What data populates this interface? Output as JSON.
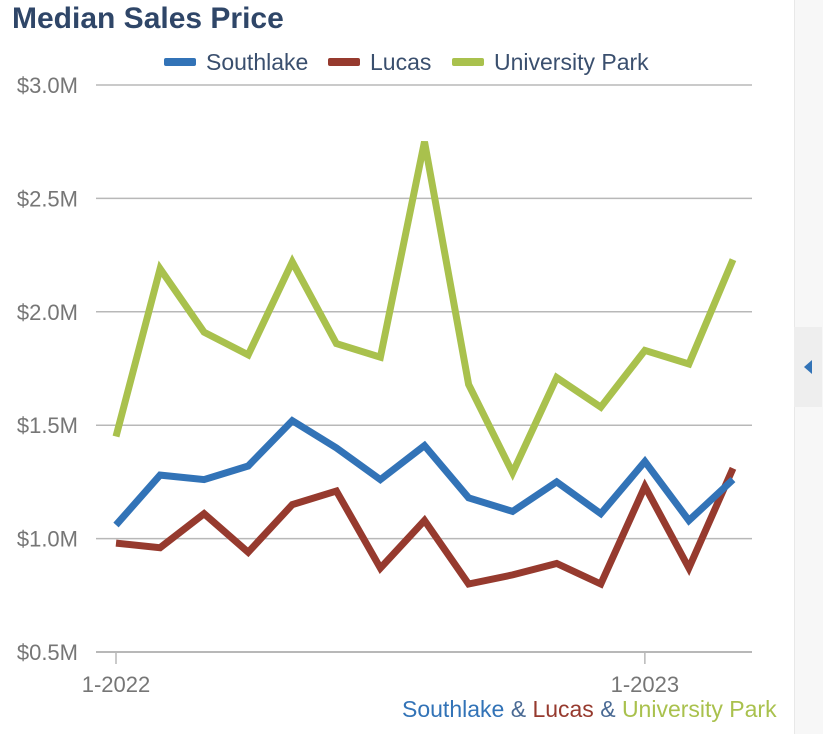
{
  "chart_data": {
    "type": "line",
    "title": "Median Sales Price",
    "xlabel": "",
    "ylabel": "",
    "ylim": [
      0.5,
      3.0
    ],
    "yticks": [
      {
        "value": 0.5,
        "label": "$0.5M"
      },
      {
        "value": 1.0,
        "label": "$1.0M"
      },
      {
        "value": 1.5,
        "label": "$1.5M"
      },
      {
        "value": 2.0,
        "label": "$2.0M"
      },
      {
        "value": 2.5,
        "label": "$2.5M"
      },
      {
        "value": 3.0,
        "label": "$3.0M"
      }
    ],
    "x": [
      "1-2022",
      "2-2022",
      "3-2022",
      "4-2022",
      "5-2022",
      "6-2022",
      "7-2022",
      "8-2022",
      "9-2022",
      "10-2022",
      "11-2022",
      "12-2022",
      "1-2023",
      "2-2023",
      "3-2023"
    ],
    "xtick_labels": [
      {
        "index": 0,
        "label": "1-2022"
      },
      {
        "index": 12,
        "label": "1-2023"
      }
    ],
    "grid": true,
    "legend_position": "top",
    "series": [
      {
        "name": "Southlake",
        "color": "#3273b7",
        "values": [
          1.06,
          1.28,
          1.26,
          1.32,
          1.52,
          1.4,
          1.26,
          1.41,
          1.18,
          1.12,
          1.25,
          1.11,
          1.34,
          1.08,
          1.26
        ]
      },
      {
        "name": "Lucas",
        "color": "#963a2e",
        "values": [
          0.98,
          0.96,
          1.11,
          0.94,
          1.15,
          1.21,
          0.87,
          1.08,
          0.8,
          0.84,
          0.89,
          0.8,
          1.23,
          0.87,
          1.31
        ]
      },
      {
        "name": "University Park",
        "color": "#a9c14d",
        "values": [
          1.45,
          2.19,
          1.91,
          1.81,
          2.22,
          1.86,
          1.8,
          2.75,
          1.68,
          1.29,
          1.71,
          1.58,
          1.83,
          1.77,
          2.23
        ]
      }
    ]
  },
  "caption": {
    "part1": "Southlake",
    "amp1": " & ",
    "part2": "Lucas",
    "amp2": " & ",
    "part3": "University Park"
  },
  "colors": {
    "title": "#2f4668",
    "grid": "#b8b8b8",
    "axis_text": "#767676"
  },
  "icons": {
    "collapse_tab": "triangle-left-icon"
  }
}
